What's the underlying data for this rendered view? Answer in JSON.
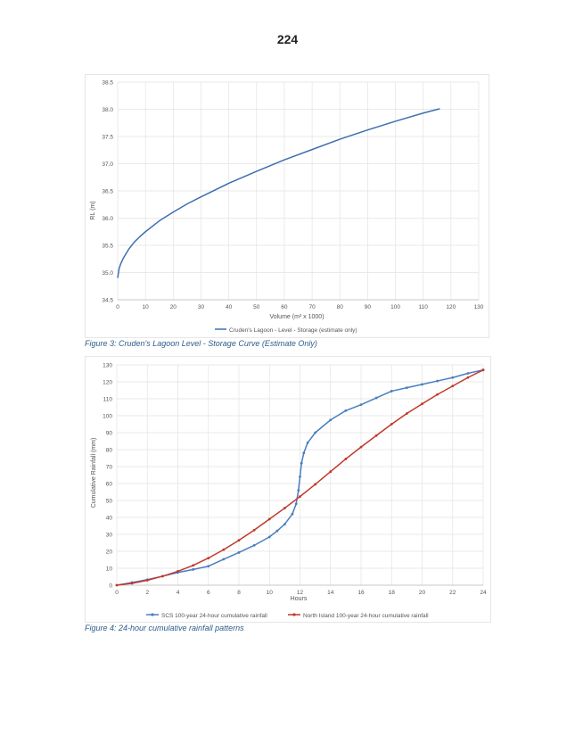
{
  "page_number": "224",
  "colors": {
    "storage_line": "#3d6fb0",
    "scs_series": "#4a7ebf",
    "north_island_series": "#c0392b",
    "grid": "#e3e3e3",
    "caption": "#2e5c8a"
  },
  "captions": {
    "figure3": "Figure 3: Cruden's Lagoon Level - Storage Curve (Estimate Only)",
    "figure4": "Figure 4: 24-hour cumulative rainfall patterns"
  },
  "chart_data": [
    {
      "type": "line",
      "title": "",
      "xlabel": "Volume  (m³ x 1000)",
      "ylabel": "RL (m)",
      "xlim": [
        0,
        130
      ],
      "ylim": [
        34.5,
        38.5
      ],
      "x_ticks": [
        "0",
        "10",
        "20",
        "30",
        "40",
        "50",
        "60",
        "70",
        "80",
        "90",
        "100",
        "110",
        "120",
        "130"
      ],
      "y_ticks": [
        "34.5",
        "35.0",
        "35.5",
        "36.0",
        "36.5",
        "37.0",
        "37.5",
        "38.0",
        "38.5"
      ],
      "grid": true,
      "legend_position": "bottom",
      "series": [
        {
          "name": "Cruden's Lagoon - Level - Storage (estimate only)",
          "x": [
            0,
            0.5,
            1,
            2,
            4,
            6,
            8,
            10,
            15,
            20,
            25,
            30,
            40,
            50,
            60,
            70,
            80,
            90,
            100,
            110,
            116
          ],
          "y": [
            34.9,
            35.07,
            35.15,
            35.26,
            35.43,
            35.56,
            35.66,
            35.75,
            35.95,
            36.11,
            36.26,
            36.39,
            36.64,
            36.86,
            37.07,
            37.26,
            37.45,
            37.62,
            37.78,
            37.93,
            38.01
          ]
        }
      ]
    },
    {
      "type": "line",
      "title": "",
      "xlabel": "Hours",
      "ylabel": "Cumulative Rainfall (mm)",
      "xlim": [
        0,
        24
      ],
      "ylim": [
        0,
        130
      ],
      "x_ticks": [
        "0",
        "2",
        "4",
        "6",
        "8",
        "10",
        "12",
        "14",
        "16",
        "18",
        "20",
        "22",
        "24"
      ],
      "y_ticks": [
        "0",
        "10",
        "20",
        "30",
        "40",
        "50",
        "60",
        "70",
        "80",
        "90",
        "100",
        "110",
        "120",
        "130"
      ],
      "grid": true,
      "legend_position": "bottom",
      "series": [
        {
          "name": "SCS 100-year 24-hour cumulative rainfall",
          "x": [
            0,
            1,
            2,
            3,
            4,
            5,
            6,
            7,
            8,
            9,
            10,
            10.5,
            11,
            11.5,
            11.75,
            11.9,
            12,
            12.1,
            12.25,
            12.5,
            13,
            14,
            15,
            16,
            17,
            18,
            19,
            20,
            21,
            22,
            23,
            24
          ],
          "y": [
            0,
            1.6,
            3.3,
            5.3,
            7.5,
            9.3,
            11.2,
            15.3,
            19.3,
            23.5,
            28.5,
            32,
            36,
            42,
            48,
            56,
            64,
            72,
            78,
            84,
            90,
            97.5,
            103,
            106.5,
            110.5,
            114.5,
            116.5,
            118.5,
            120.5,
            122.5,
            125,
            127
          ]
        },
        {
          "name": "North Island 100-year 24-hour cumulative rainfall",
          "x": [
            0,
            1,
            2,
            3,
            4,
            5,
            6,
            7,
            8,
            9,
            10,
            11,
            12,
            13,
            14,
            15,
            16,
            17,
            18,
            19,
            20,
            21,
            22,
            23,
            24
          ],
          "y": [
            0,
            1.1,
            2.9,
            5.3,
            8.2,
            11.7,
            16,
            21,
            26.5,
            32.5,
            39,
            45.5,
            52.3,
            59.5,
            67,
            74.5,
            81.5,
            88.3,
            95,
            101.3,
            107,
            112.5,
            117.5,
            122.5,
            127
          ]
        }
      ]
    }
  ]
}
